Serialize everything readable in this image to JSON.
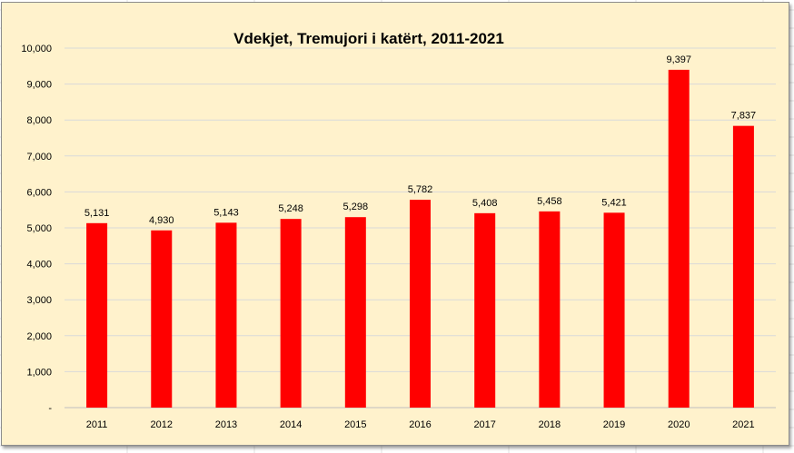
{
  "chart_data": {
    "type": "bar",
    "title": "Vdekjet, Tremujori i katërt, 2011-2021",
    "categories": [
      "2011",
      "2012",
      "2013",
      "2014",
      "2015",
      "2016",
      "2017",
      "2018",
      "2019",
      "2020",
      "2021"
    ],
    "values": [
      5131,
      4930,
      5143,
      5248,
      5298,
      5782,
      5408,
      5458,
      5421,
      9397,
      7837
    ],
    "data_labels": [
      "5,131",
      "4,930",
      "5,143",
      "5,248",
      "5,298",
      "5,782",
      "5,408",
      "5,458",
      "5,421",
      "9,397",
      "7,837"
    ],
    "ylim": [
      0,
      10000
    ],
    "yticks": [
      0,
      1000,
      2000,
      3000,
      4000,
      5000,
      6000,
      7000,
      8000,
      9000,
      10000
    ],
    "ytick_labels": [
      "-",
      "1,000",
      "2,000",
      "3,000",
      "4,000",
      "5,000",
      "6,000",
      "7,000",
      "8,000",
      "9,000",
      "10,000"
    ],
    "xlabel": "",
    "ylabel": "",
    "grid": true,
    "legend": "none",
    "colors": {
      "bar": "#ff0000",
      "background": "#fff2cc",
      "gridline": "#d9d9d9"
    }
  }
}
